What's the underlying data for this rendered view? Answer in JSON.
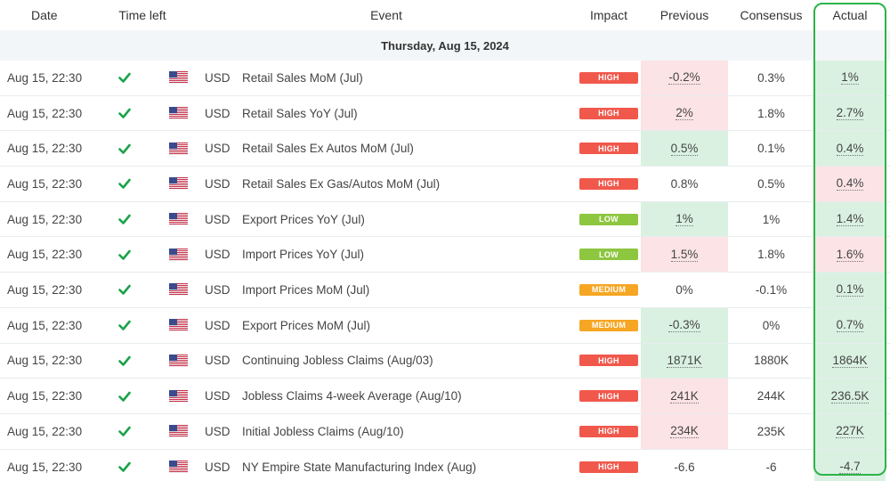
{
  "headers": {
    "date": "Date",
    "time_left": "Time left",
    "event": "Event",
    "impact": "Impact",
    "previous": "Previous",
    "consensus": "Consensus",
    "actual": "Actual"
  },
  "day_label": "Thursday, Aug 15, 2024",
  "colors": {
    "high": "#f1584c",
    "low": "#8dc63f",
    "medium": "#f6a623",
    "better": "#daf1e1",
    "worse": "#fce3e6",
    "check": "#1aa34a",
    "highlight_frame": "#2db34a"
  },
  "rows": [
    {
      "date": "Aug 15, 22:30",
      "currency": "USD",
      "event": "Retail Sales MoM (Jul)",
      "impact": "HIGH",
      "previous": "-0.2%",
      "previous_state": "down",
      "consensus": "0.3%",
      "actual": "1%",
      "actual_state": "up"
    },
    {
      "date": "Aug 15, 22:30",
      "currency": "USD",
      "event": "Retail Sales YoY (Jul)",
      "impact": "HIGH",
      "previous": "2%",
      "previous_state": "down",
      "consensus": "1.8%",
      "actual": "2.7%",
      "actual_state": "up"
    },
    {
      "date": "Aug 15, 22:30",
      "currency": "USD",
      "event": "Retail Sales Ex Autos MoM (Jul)",
      "impact": "HIGH",
      "previous": "0.5%",
      "previous_state": "up",
      "consensus": "0.1%",
      "actual": "0.4%",
      "actual_state": "up"
    },
    {
      "date": "Aug 15, 22:30",
      "currency": "USD",
      "event": "Retail Sales Ex Gas/Autos MoM (Jul)",
      "impact": "HIGH",
      "previous": "0.8%",
      "previous_state": "none",
      "consensus": "0.5%",
      "actual": "0.4%",
      "actual_state": "down"
    },
    {
      "date": "Aug 15, 22:30",
      "currency": "USD",
      "event": "Export Prices YoY (Jul)",
      "impact": "LOW",
      "previous": "1%",
      "previous_state": "up",
      "consensus": "1%",
      "actual": "1.4%",
      "actual_state": "up"
    },
    {
      "date": "Aug 15, 22:30",
      "currency": "USD",
      "event": "Import Prices YoY (Jul)",
      "impact": "LOW",
      "previous": "1.5%",
      "previous_state": "down",
      "consensus": "1.8%",
      "actual": "1.6%",
      "actual_state": "down"
    },
    {
      "date": "Aug 15, 22:30",
      "currency": "USD",
      "event": "Import Prices MoM (Jul)",
      "impact": "MEDIUM",
      "previous": "0%",
      "previous_state": "none",
      "consensus": "-0.1%",
      "actual": "0.1%",
      "actual_state": "up"
    },
    {
      "date": "Aug 15, 22:30",
      "currency": "USD",
      "event": "Export Prices MoM (Jul)",
      "impact": "MEDIUM",
      "previous": "-0.3%",
      "previous_state": "up",
      "consensus": "0%",
      "actual": "0.7%",
      "actual_state": "up"
    },
    {
      "date": "Aug 15, 22:30",
      "currency": "USD",
      "event": "Continuing Jobless Claims (Aug/03)",
      "impact": "HIGH",
      "previous": "1871K",
      "previous_state": "up",
      "consensus": "1880K",
      "actual": "1864K",
      "actual_state": "up"
    },
    {
      "date": "Aug 15, 22:30",
      "currency": "USD",
      "event": "Jobless Claims 4-week Average (Aug/10)",
      "impact": "HIGH",
      "previous": "241K",
      "previous_state": "down",
      "consensus": "244K",
      "actual": "236.5K",
      "actual_state": "up"
    },
    {
      "date": "Aug 15, 22:30",
      "currency": "USD",
      "event": "Initial Jobless Claims (Aug/10)",
      "impact": "HIGH",
      "previous": "234K",
      "previous_state": "down",
      "consensus": "235K",
      "actual": "227K",
      "actual_state": "up"
    },
    {
      "date": "Aug 15, 22:30",
      "currency": "USD",
      "event": "NY Empire State Manufacturing Index (Aug)",
      "impact": "HIGH",
      "previous": "-6.6",
      "previous_state": "none",
      "consensus": "-6",
      "actual": "-4.7",
      "actual_state": "up"
    }
  ]
}
